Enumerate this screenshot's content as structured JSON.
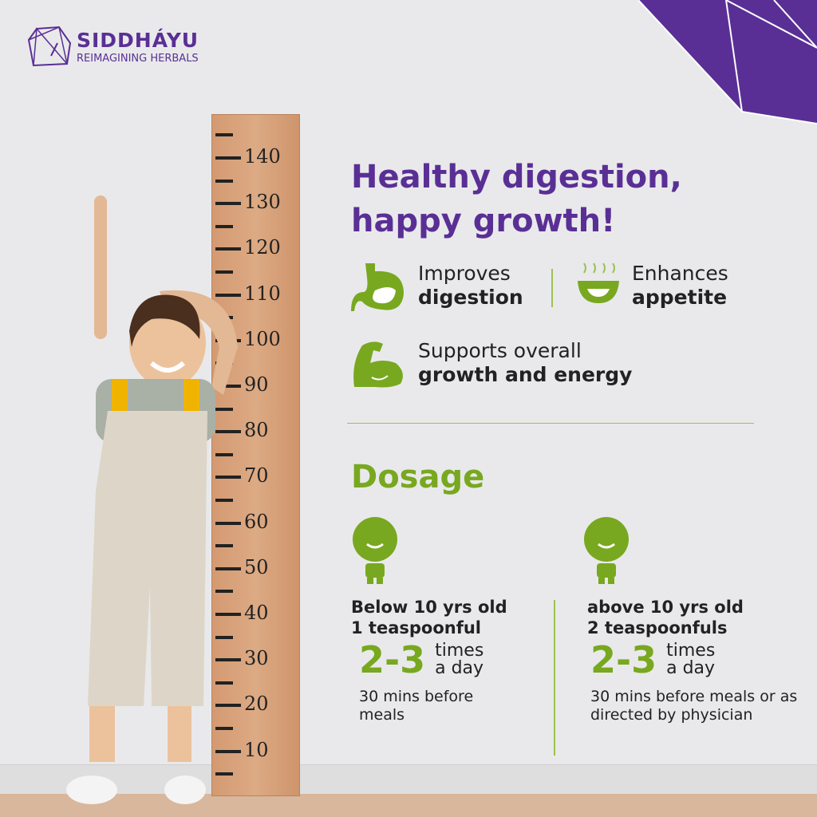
{
  "brand": {
    "name": "SIDDHÁYU",
    "tagline": "REIMAGINING HERBALS",
    "color": "#5a2f95"
  },
  "accent": "#78a81f",
  "ruler": {
    "labels": [
      "140",
      "130",
      "120",
      "110",
      "100",
      "90",
      "80",
      "70",
      "60",
      "50",
      "40",
      "30",
      "20",
      "10"
    ]
  },
  "headline": {
    "line1": "Healthy digestion,",
    "line2": "happy growth!"
  },
  "benefits": [
    {
      "icon": "stomach-icon",
      "light": "Improves",
      "bold": "digestion"
    },
    {
      "icon": "soup-bowl-icon",
      "light": "Enhances",
      "bold": "appetite"
    },
    {
      "icon": "flexed-arm-icon",
      "light": "Supports overall",
      "bold": "growth and energy"
    }
  ],
  "dosage": {
    "title": "Dosage",
    "columns": [
      {
        "icon": "child-icon",
        "age": "Below 10 yrs old",
        "amount": "1 teaspoonful",
        "count": "2-3",
        "times1": "times",
        "times2": "a day",
        "note": "30 mins before meals"
      },
      {
        "icon": "child-icon",
        "age": "above 10 yrs old",
        "amount": "2 teaspoonfuls",
        "count": "2-3",
        "times1": "times",
        "times2": "a day",
        "note": "30 mins before meals or as directed by physician"
      }
    ]
  }
}
